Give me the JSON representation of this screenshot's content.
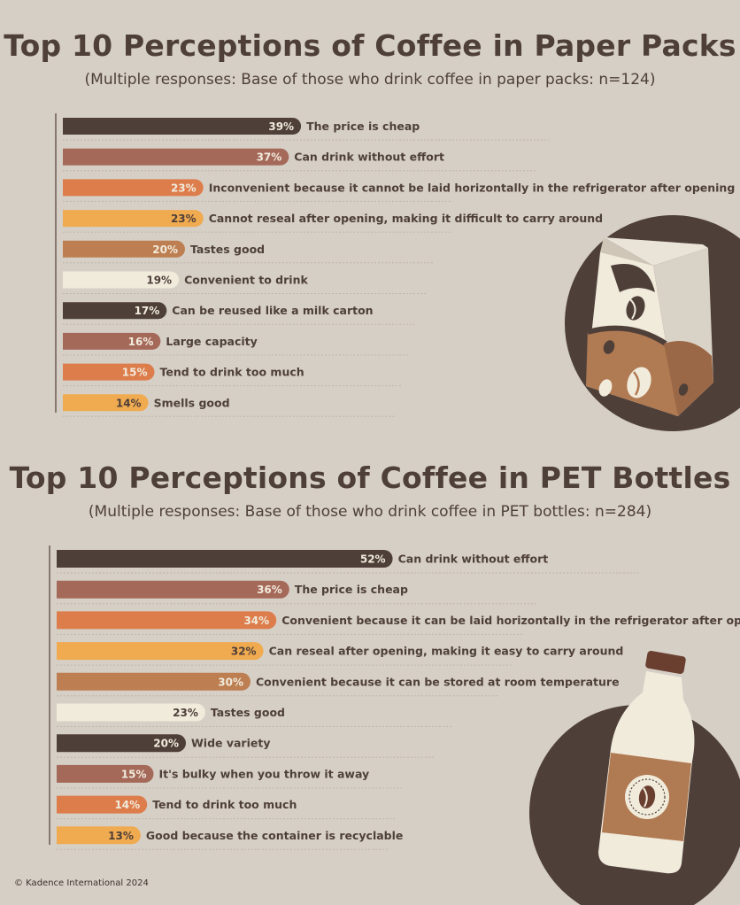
{
  "charts": [
    {
      "title": "Top 10 Perceptions of Coffee in Paper Packs",
      "subtitle": "(Multiple responses: Base of those who drink coffee in paper packs: n=124)"
    },
    {
      "title": "Top 10 Perceptions of Coffee in PET Bottles",
      "subtitle": "(Multiple responses: Base of those who drink coffee in PET bottles: n=284)"
    }
  ],
  "footer": "© Kadence International 2024",
  "colors": {
    "background": "#d6cfc6",
    "text": "#4e3f39",
    "palette": [
      "#4e3f39",
      "#a5695a",
      "#dd7d4c",
      "#f0aa50",
      "#bd7f52",
      "#f1ebdc"
    ]
  },
  "icons": [
    "coffee-carton-illustration",
    "coffee-pet-bottle-illustration"
  ],
  "chart_data": [
    {
      "type": "bar",
      "orientation": "horizontal",
      "title": "Top 10 Perceptions of Coffee in Paper Packs",
      "subtitle": "(Multiple responses: Base of those who drink coffee in paper packs: n=124)",
      "unit": "%",
      "categories": [
        "The price is cheap",
        "Can drink without effort",
        "Inconvenient because it cannot be laid horizontally in the refrigerator after opening",
        "Cannot reseal after opening, making it difficult to carry around",
        "Tastes good",
        "Convenient to drink",
        "Can be reused like a milk carton",
        "Large capacity",
        "Tend to drink too much",
        "Smells good"
      ],
      "values": [
        39,
        37,
        23,
        23,
        20,
        19,
        17,
        16,
        15,
        14
      ],
      "value_labels": [
        "39%",
        "37%",
        "23%",
        "23%",
        "20%",
        "19%",
        "17%",
        "16%",
        "15%",
        "14%"
      ]
    },
    {
      "type": "bar",
      "orientation": "horizontal",
      "title": "Top 10 Perceptions of Coffee in PET Bottles",
      "subtitle": "(Multiple responses: Base of those who drink coffee in PET bottles: n=284)",
      "unit": "%",
      "categories": [
        "Can drink without effort",
        "The price is cheap",
        "Convenient because it can be laid horizontally in the refrigerator after opening",
        "Can reseal after opening, making it easy to carry around",
        "Convenient because it can be stored at room temperature",
        "Tastes good",
        "Wide variety",
        "It's bulky when you throw it away",
        "Tend to drink too much",
        "Good because the container is recyclable"
      ],
      "values": [
        52,
        36,
        34,
        32,
        30,
        23,
        20,
        15,
        14,
        13
      ],
      "value_labels": [
        "52%",
        "36%",
        "34%",
        "32%",
        "30%",
        "23%",
        "20%",
        "15%",
        "14%",
        "13%"
      ]
    }
  ]
}
